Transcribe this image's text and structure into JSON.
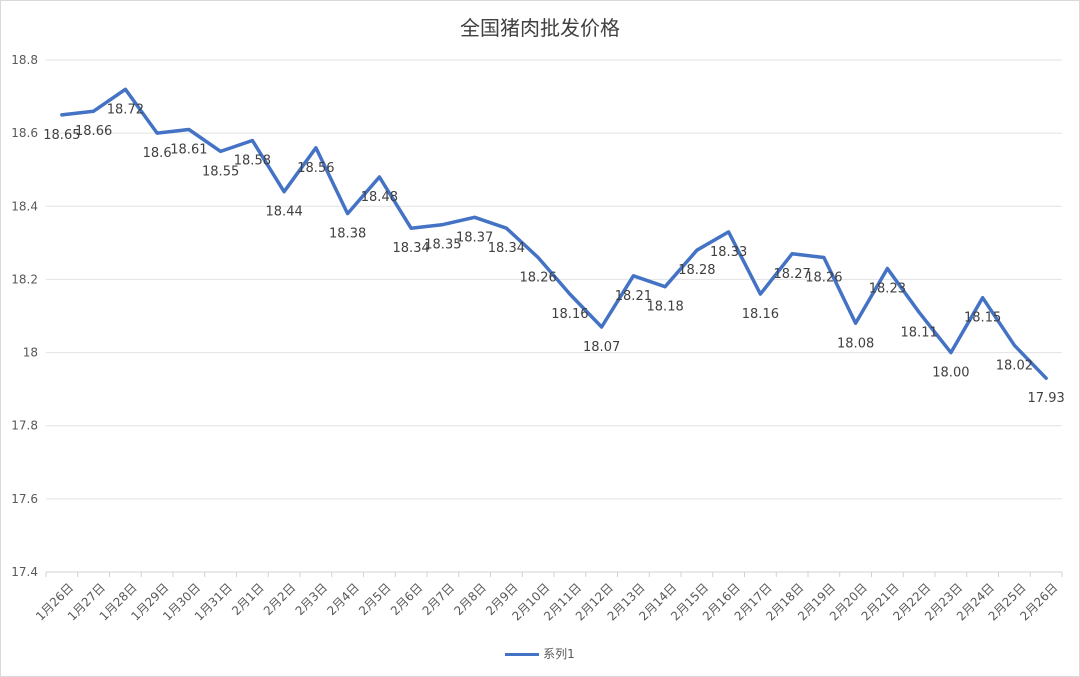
{
  "chart_data": {
    "type": "line",
    "title": "全国猪肉批发价格",
    "xlabel": "",
    "ylabel": "",
    "ylim": [
      17.4,
      18.8
    ],
    "yticks": [
      "17.4",
      "17.6",
      "17.8",
      "18",
      "18.2",
      "18.4",
      "18.6",
      "18.8"
    ],
    "grid": true,
    "legend": "bottom",
    "categories": [
      "1月26日",
      "1月27日",
      "1月28日",
      "1月29日",
      "1月30日",
      "1月31日",
      "2月1日",
      "2月2日",
      "2月3日",
      "2月4日",
      "2月5日",
      "2月6日",
      "2月7日",
      "2月8日",
      "2月9日",
      "2月10日",
      "2月11日",
      "2月12日",
      "2月13日",
      "2月14日",
      "2月15日",
      "2月16日",
      "2月17日",
      "2月18日",
      "2月19日",
      "2月20日",
      "2月21日",
      "2月22日",
      "2月23日",
      "2月24日",
      "2月25日",
      "2月26日"
    ],
    "series": [
      {
        "name": "系列1",
        "color": "#4472C4",
        "values": [
          18.65,
          18.66,
          18.72,
          18.6,
          18.61,
          18.55,
          18.58,
          18.44,
          18.56,
          18.38,
          18.48,
          18.34,
          18.35,
          18.37,
          18.34,
          18.26,
          18.16,
          18.07,
          18.21,
          18.18,
          18.28,
          18.33,
          18.16,
          18.27,
          18.26,
          18.08,
          18.23,
          18.11,
          18.0,
          18.15,
          18.02,
          17.93
        ],
        "labels": [
          "18.65",
          "18.66",
          "18.72",
          "18.6",
          "18.61",
          "18.55",
          "18.58",
          "18.44",
          "18.56",
          "18.38",
          "18.48",
          "18.34",
          "18.35",
          "18.37",
          "18.34",
          "18.26",
          "18.16",
          "18.07",
          "18.21",
          "18.18",
          "18.28",
          "18.33",
          "18.16",
          "18.27",
          "18.26",
          "18.08",
          "18.23",
          "18.11",
          "18.00",
          "18.15",
          "18.02",
          "17.93"
        ]
      }
    ]
  }
}
